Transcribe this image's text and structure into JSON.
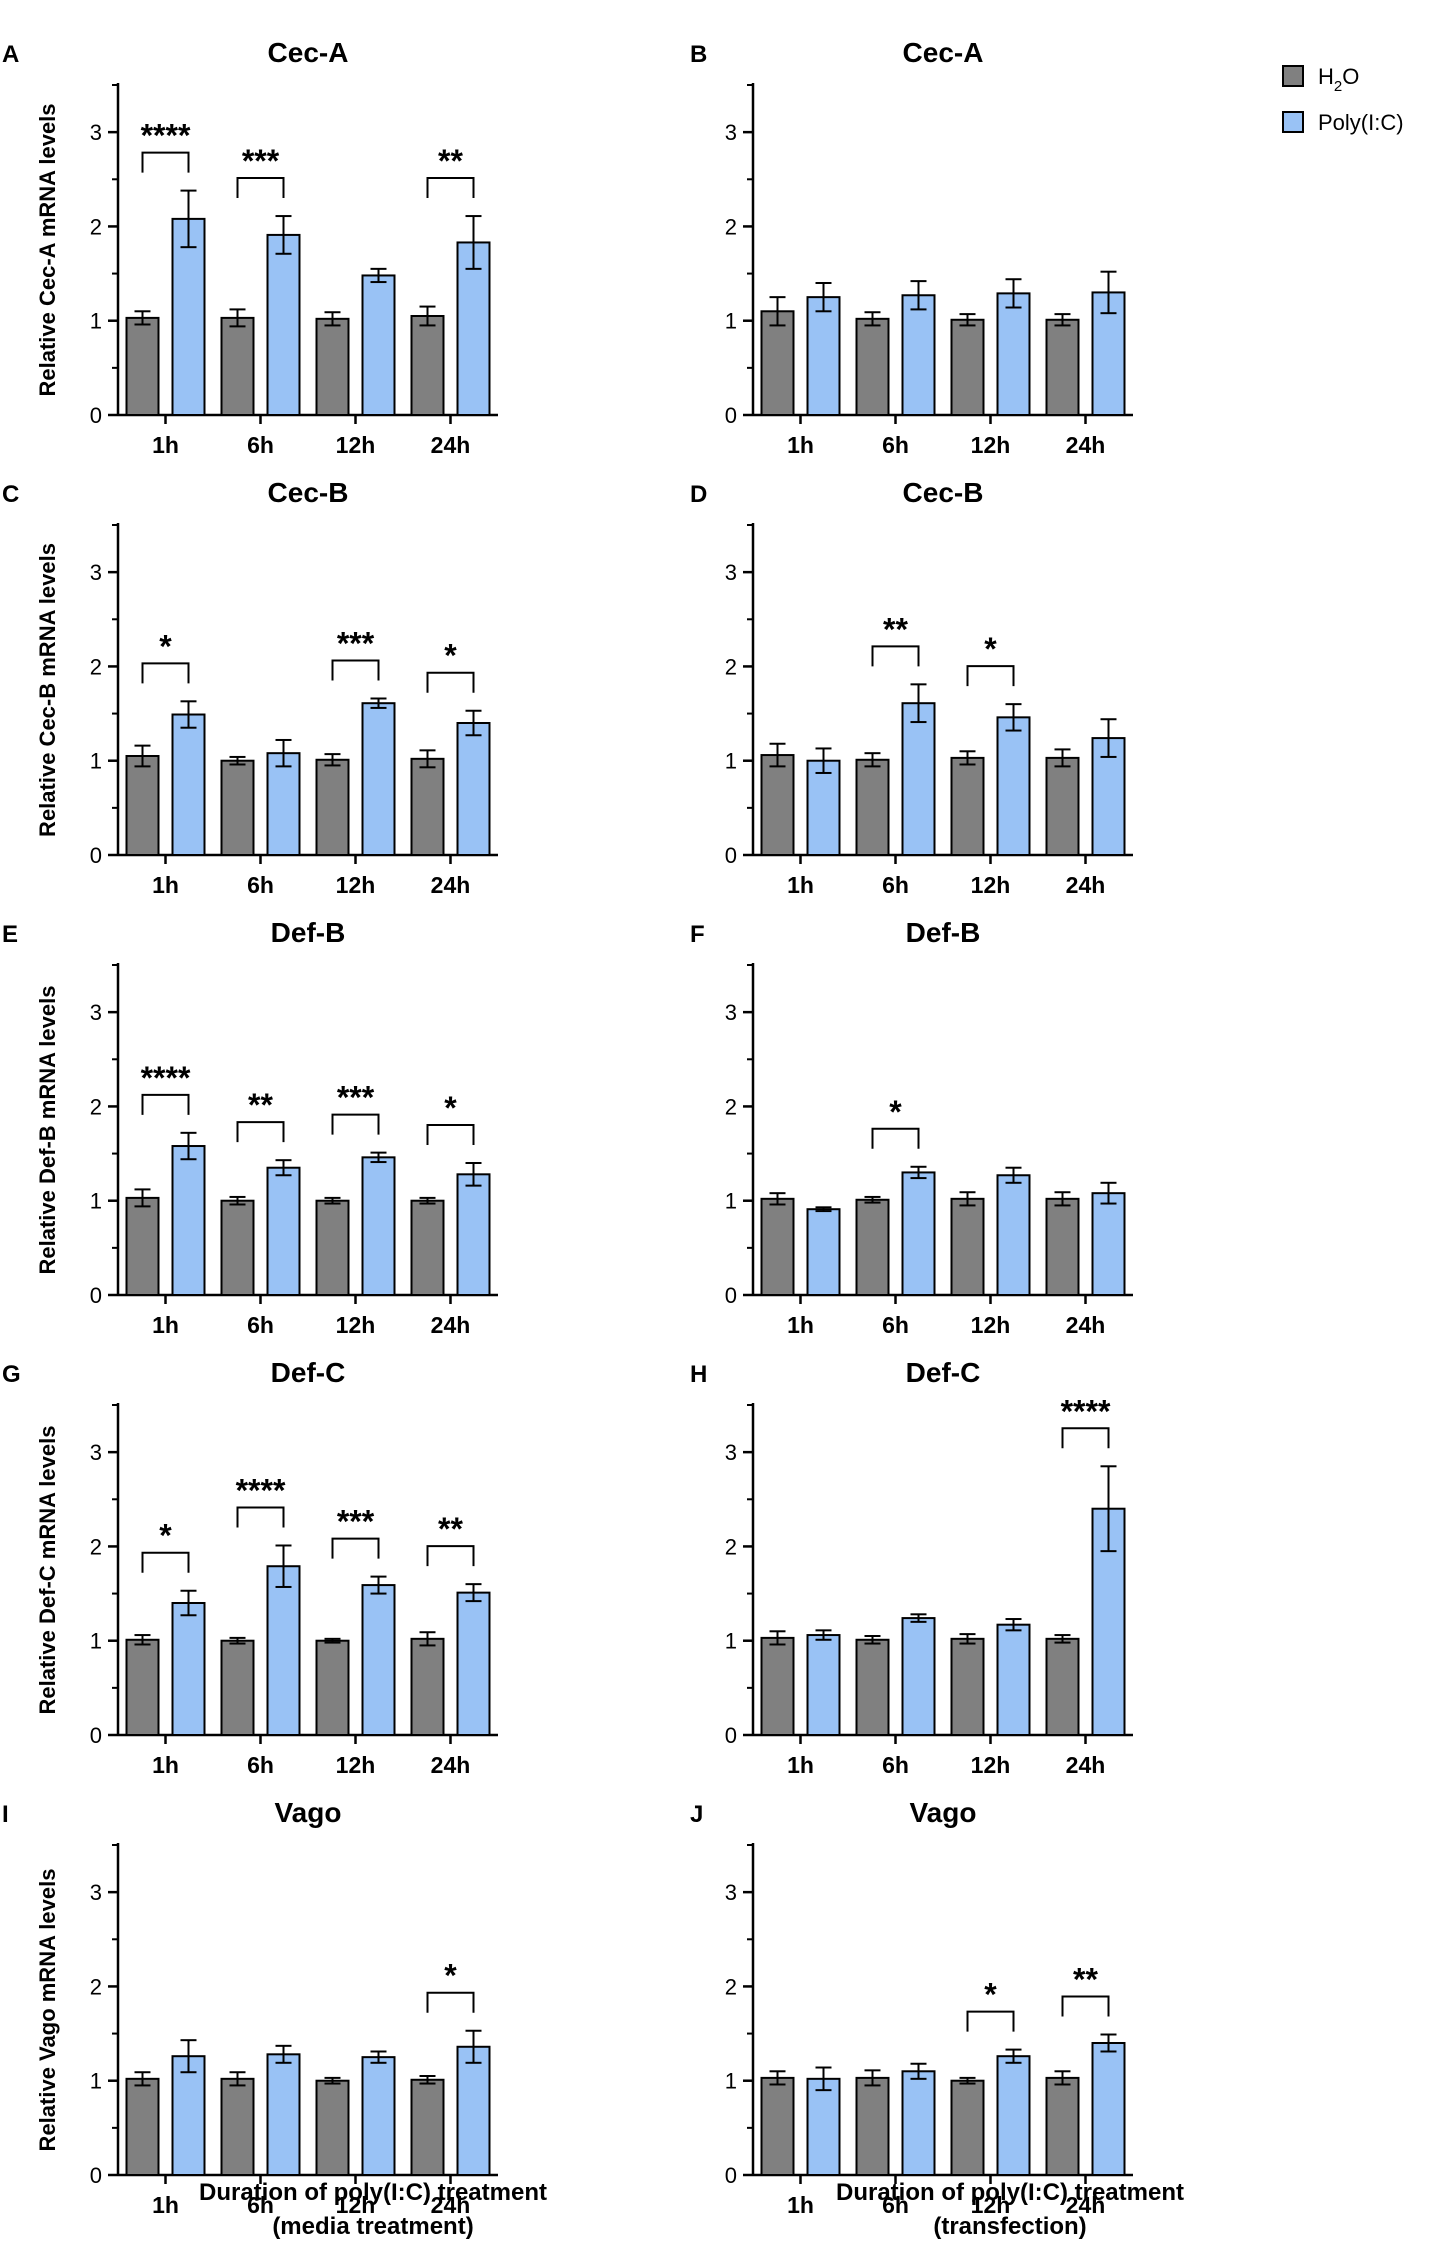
{
  "colors": {
    "h2o": "#808080",
    "poly": "#99c2f5",
    "stroke": "#000000"
  },
  "legend": {
    "h2o_main": "H",
    "h2o_sub": "2",
    "h2o_tail": "O",
    "poly": "Poly(I:C)"
  },
  "xlabels": {
    "left_line1": "Duration of poly(I:C) treatment",
    "left_line2": "(media treatment)",
    "right_line1": "Duration of poly(I:C) treatment",
    "right_line2": "(transfection)"
  },
  "chart_data": [
    {
      "letter": "A",
      "type": "bar",
      "title": "Cec-A",
      "ylabel": "Relative Cec-A mRNA levels",
      "categories": [
        "1h",
        "6h",
        "12h",
        "24h"
      ],
      "yticks": [
        "0",
        "1",
        "2",
        "3"
      ],
      "ylim": [
        0,
        3.5
      ],
      "series": [
        {
          "name": "H2O",
          "values": [
            1.03,
            1.03,
            1.02,
            1.05
          ],
          "errors": [
            0.07,
            0.09,
            0.07,
            0.1
          ]
        },
        {
          "name": "Poly(I:C)",
          "values": [
            2.08,
            1.91,
            1.48,
            1.83
          ],
          "errors": [
            0.3,
            0.2,
            0.07,
            0.28
          ]
        }
      ],
      "sig": [
        {
          "cat": 0,
          "label": "****"
        },
        {
          "cat": 1,
          "label": "***"
        },
        {
          "cat": 3,
          "label": "**"
        }
      ]
    },
    {
      "letter": "B",
      "type": "bar",
      "title": "Cec-A",
      "ylabel": "",
      "categories": [
        "1h",
        "6h",
        "12h",
        "24h"
      ],
      "yticks": [
        "0",
        "1",
        "2",
        "3"
      ],
      "ylim": [
        0,
        3.5
      ],
      "series": [
        {
          "name": "H2O",
          "values": [
            1.1,
            1.02,
            1.01,
            1.01
          ],
          "errors": [
            0.15,
            0.07,
            0.06,
            0.06
          ]
        },
        {
          "name": "Poly(I:C)",
          "values": [
            1.25,
            1.27,
            1.29,
            1.3
          ],
          "errors": [
            0.15,
            0.15,
            0.15,
            0.22
          ]
        }
      ],
      "sig": []
    },
    {
      "letter": "C",
      "type": "bar",
      "title": "Cec-B",
      "ylabel": "Relative Cec-B mRNA levels",
      "categories": [
        "1h",
        "6h",
        "12h",
        "24h"
      ],
      "yticks": [
        "0",
        "1",
        "2",
        "3"
      ],
      "ylim": [
        0,
        3.5
      ],
      "series": [
        {
          "name": "H2O",
          "values": [
            1.05,
            1.0,
            1.01,
            1.02
          ],
          "errors": [
            0.11,
            0.04,
            0.06,
            0.09
          ]
        },
        {
          "name": "Poly(I:C)",
          "values": [
            1.49,
            1.08,
            1.61,
            1.4
          ],
          "errors": [
            0.14,
            0.14,
            0.05,
            0.13
          ]
        }
      ],
      "sig": [
        {
          "cat": 0,
          "label": "*"
        },
        {
          "cat": 2,
          "label": "***"
        },
        {
          "cat": 3,
          "label": "*"
        }
      ]
    },
    {
      "letter": "D",
      "type": "bar",
      "title": "Cec-B",
      "ylabel": "",
      "categories": [
        "1h",
        "6h",
        "12h",
        "24h"
      ],
      "yticks": [
        "0",
        "1",
        "2",
        "3"
      ],
      "ylim": [
        0,
        3.5
      ],
      "series": [
        {
          "name": "H2O",
          "values": [
            1.06,
            1.01,
            1.03,
            1.03
          ],
          "errors": [
            0.12,
            0.07,
            0.07,
            0.09
          ]
        },
        {
          "name": "Poly(I:C)",
          "values": [
            1.0,
            1.61,
            1.46,
            1.24
          ],
          "errors": [
            0.13,
            0.2,
            0.14,
            0.2
          ]
        }
      ],
      "sig": [
        {
          "cat": 1,
          "label": "**"
        },
        {
          "cat": 2,
          "label": "*"
        }
      ]
    },
    {
      "letter": "E",
      "type": "bar",
      "title": "Def-B",
      "ylabel": "Relative Def-B mRNA levels",
      "categories": [
        "1h",
        "6h",
        "12h",
        "24h"
      ],
      "yticks": [
        "0",
        "1",
        "2",
        "3"
      ],
      "ylim": [
        0,
        3.5
      ],
      "series": [
        {
          "name": "H2O",
          "values": [
            1.03,
            1.0,
            1.0,
            1.0
          ],
          "errors": [
            0.09,
            0.04,
            0.03,
            0.03
          ]
        },
        {
          "name": "Poly(I:C)",
          "values": [
            1.58,
            1.35,
            1.46,
            1.28
          ],
          "errors": [
            0.14,
            0.08,
            0.05,
            0.12
          ]
        }
      ],
      "sig": [
        {
          "cat": 0,
          "label": "****"
        },
        {
          "cat": 1,
          "label": "**"
        },
        {
          "cat": 2,
          "label": "***"
        },
        {
          "cat": 3,
          "label": "*"
        }
      ]
    },
    {
      "letter": "F",
      "type": "bar",
      "title": "Def-B",
      "ylabel": "",
      "categories": [
        "1h",
        "6h",
        "12h",
        "24h"
      ],
      "yticks": [
        "0",
        "1",
        "2",
        "3"
      ],
      "ylim": [
        0,
        3.5
      ],
      "series": [
        {
          "name": "H2O",
          "values": [
            1.02,
            1.01,
            1.02,
            1.02
          ],
          "errors": [
            0.06,
            0.03,
            0.07,
            0.07
          ]
        },
        {
          "name": "Poly(I:C)",
          "values": [
            0.91,
            1.3,
            1.27,
            1.08
          ],
          "errors": [
            0.02,
            0.06,
            0.08,
            0.11
          ]
        }
      ],
      "sig": [
        {
          "cat": 1,
          "label": "*"
        }
      ]
    },
    {
      "letter": "G",
      "type": "bar",
      "title": "Def-C",
      "ylabel": "Relative Def-C mRNA levels",
      "categories": [
        "1h",
        "6h",
        "12h",
        "24h"
      ],
      "yticks": [
        "0",
        "1",
        "2",
        "3"
      ],
      "ylim": [
        0,
        3.5
      ],
      "series": [
        {
          "name": "H2O",
          "values": [
            1.01,
            1.0,
            1.0,
            1.02
          ],
          "errors": [
            0.05,
            0.03,
            0.02,
            0.07
          ]
        },
        {
          "name": "Poly(I:C)",
          "values": [
            1.4,
            1.79,
            1.59,
            1.51
          ],
          "errors": [
            0.13,
            0.22,
            0.09,
            0.09
          ]
        }
      ],
      "sig": [
        {
          "cat": 0,
          "label": "*"
        },
        {
          "cat": 1,
          "label": "****"
        },
        {
          "cat": 2,
          "label": "***"
        },
        {
          "cat": 3,
          "label": "**"
        }
      ]
    },
    {
      "letter": "H",
      "type": "bar",
      "title": "Def-C",
      "ylabel": "",
      "categories": [
        "1h",
        "6h",
        "12h",
        "24h"
      ],
      "yticks": [
        "0",
        "1",
        "2",
        "3"
      ],
      "ylim": [
        0,
        3.5
      ],
      "series": [
        {
          "name": "H2O",
          "values": [
            1.03,
            1.01,
            1.02,
            1.02
          ],
          "errors": [
            0.07,
            0.04,
            0.05,
            0.04
          ]
        },
        {
          "name": "Poly(I:C)",
          "values": [
            1.06,
            1.24,
            1.17,
            2.4
          ],
          "errors": [
            0.05,
            0.04,
            0.06,
            0.45
          ]
        }
      ],
      "sig": [
        {
          "cat": 3,
          "label": "****"
        }
      ]
    },
    {
      "letter": "I",
      "type": "bar",
      "title": "Vago",
      "ylabel": "Relative Vago mRNA levels",
      "categories": [
        "1h",
        "6h",
        "12h",
        "24h"
      ],
      "yticks": [
        "0",
        "1",
        "2",
        "3"
      ],
      "ylim": [
        0,
        3.5
      ],
      "series": [
        {
          "name": "H2O",
          "values": [
            1.02,
            1.02,
            1.0,
            1.01
          ],
          "errors": [
            0.07,
            0.07,
            0.03,
            0.04
          ]
        },
        {
          "name": "Poly(I:C)",
          "values": [
            1.26,
            1.28,
            1.25,
            1.36
          ],
          "errors": [
            0.17,
            0.09,
            0.06,
            0.17
          ]
        }
      ],
      "sig": [
        {
          "cat": 3,
          "label": "*"
        }
      ]
    },
    {
      "letter": "J",
      "type": "bar",
      "title": "Vago",
      "ylabel": "",
      "categories": [
        "1h",
        "6h",
        "12h",
        "24h"
      ],
      "yticks": [
        "0",
        "1",
        "2",
        "3"
      ],
      "ylim": [
        0,
        3.5
      ],
      "series": [
        {
          "name": "H2O",
          "values": [
            1.03,
            1.03,
            1.0,
            1.03
          ],
          "errors": [
            0.07,
            0.08,
            0.03,
            0.07
          ]
        },
        {
          "name": "Poly(I:C)",
          "values": [
            1.02,
            1.1,
            1.26,
            1.4
          ],
          "errors": [
            0.12,
            0.08,
            0.07,
            0.09
          ]
        }
      ],
      "sig": [
        {
          "cat": 2,
          "label": "*"
        },
        {
          "cat": 3,
          "label": "**"
        }
      ]
    }
  ]
}
